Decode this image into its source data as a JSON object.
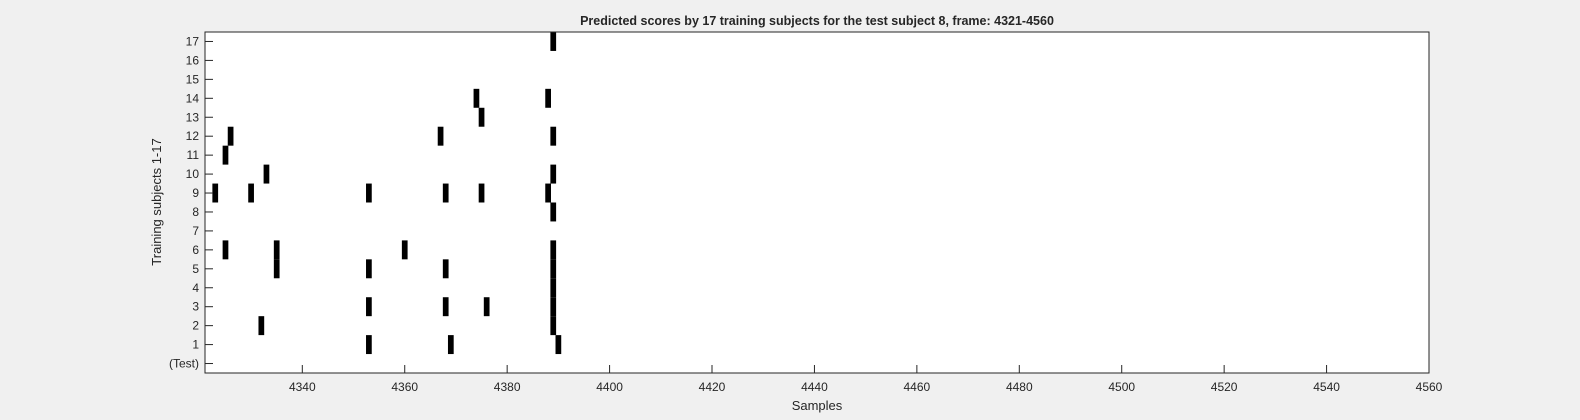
{
  "chart_data": {
    "type": "heatmap",
    "title": "Predicted scores by 17 training subjects for the test subject 8, frame: 4321-4560",
    "xlabel": "Samples",
    "ylabel": "Training subjects 1-17",
    "xlim": [
      4321,
      4560
    ],
    "x_ticks": [
      4340,
      4360,
      4380,
      4400,
      4420,
      4440,
      4460,
      4480,
      4500,
      4520,
      4540,
      4560
    ],
    "y_tick_labels": [
      "(Test)",
      "1",
      "2",
      "3",
      "4",
      "5",
      "6",
      "7",
      "8",
      "9",
      "10",
      "11",
      "12",
      "13",
      "14",
      "15",
      "16",
      "17"
    ],
    "grid": false,
    "colors": {
      "mark": "#000000",
      "background": "#ffffff",
      "figure": "#f0f0f0"
    },
    "rows": [
      {
        "label": "(Test)",
        "samples": []
      },
      {
        "label": "1",
        "samples": [
          4353,
          4369,
          4390
        ]
      },
      {
        "label": "2",
        "samples": [
          4332,
          4389
        ]
      },
      {
        "label": "3",
        "samples": [
          4353,
          4368,
          4376,
          4389
        ]
      },
      {
        "label": "4",
        "samples": [
          4389
        ]
      },
      {
        "label": "5",
        "samples": [
          4335,
          4353,
          4368,
          4389
        ]
      },
      {
        "label": "6",
        "samples": [
          4325,
          4335,
          4360,
          4389
        ]
      },
      {
        "label": "7",
        "samples": []
      },
      {
        "label": "8",
        "samples": [
          4389
        ]
      },
      {
        "label": "9",
        "samples": [
          4323,
          4330,
          4353,
          4368,
          4375,
          4388
        ]
      },
      {
        "label": "10",
        "samples": [
          4333,
          4389
        ]
      },
      {
        "label": "11",
        "samples": [
          4325
        ]
      },
      {
        "label": "12",
        "samples": [
          4326,
          4367,
          4389
        ]
      },
      {
        "label": "13",
        "samples": [
          4375
        ]
      },
      {
        "label": "14",
        "samples": [
          4374,
          4388
        ]
      },
      {
        "label": "15",
        "samples": []
      },
      {
        "label": "16",
        "samples": []
      },
      {
        "label": "17",
        "samples": [
          4389
        ]
      }
    ]
  }
}
